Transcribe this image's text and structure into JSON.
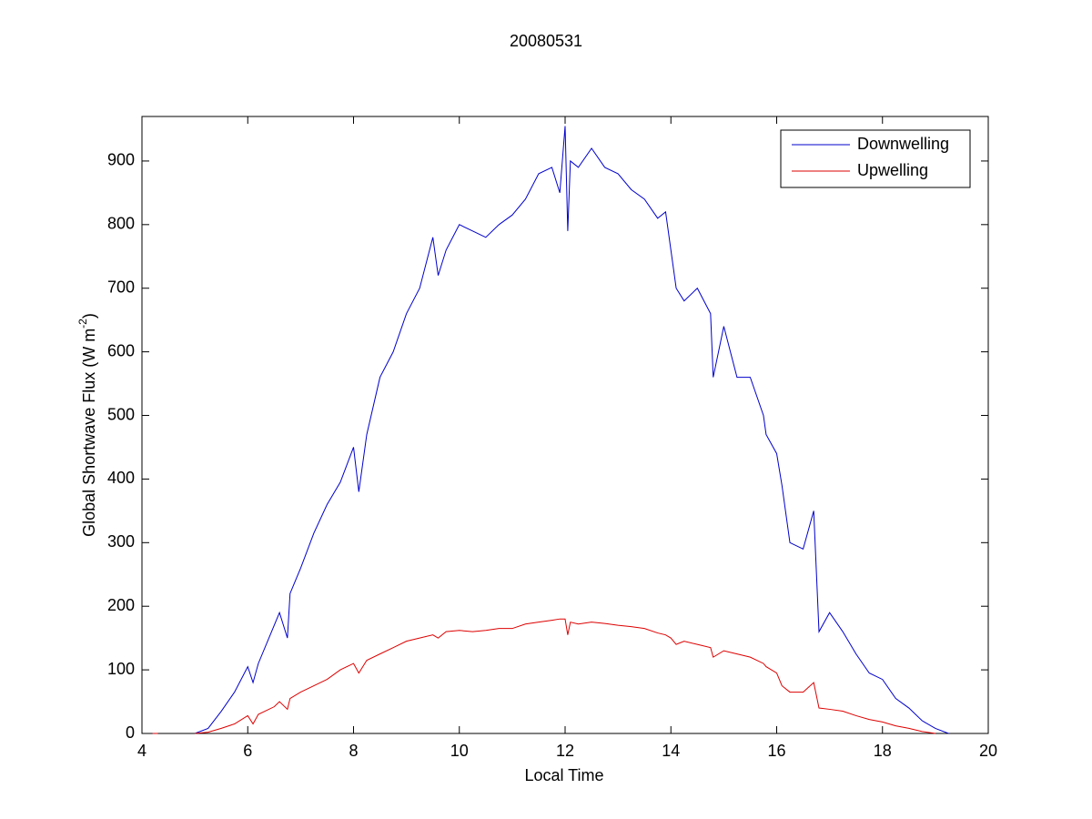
{
  "chart_data": {
    "type": "line",
    "title": "20080531",
    "xlabel": "Local Time",
    "ylabel": [
      "Global Shortwave Flux (W m",
      "-2",
      ")"
    ],
    "x": [
      4.2,
      4.3,
      4.5,
      5.0,
      5.25,
      5.5,
      5.75,
      6.0,
      6.1,
      6.2,
      6.5,
      6.6,
      6.75,
      6.8,
      7.0,
      7.25,
      7.5,
      7.75,
      8.0,
      8.1,
      8.25,
      8.5,
      8.75,
      9.0,
      9.25,
      9.5,
      9.6,
      9.75,
      10.0,
      10.25,
      10.5,
      10.75,
      11.0,
      11.25,
      11.5,
      11.75,
      11.9,
      12.0,
      12.05,
      12.1,
      12.25,
      12.5,
      12.75,
      13.0,
      13.25,
      13.5,
      13.75,
      13.9,
      14.0,
      14.1,
      14.25,
      14.5,
      14.75,
      14.8,
      15.0,
      15.25,
      15.5,
      15.75,
      15.8,
      16.0,
      16.1,
      16.25,
      16.5,
      16.7,
      16.8,
      17.0,
      17.25,
      17.5,
      17.75,
      18.0,
      18.25,
      18.5,
      18.75,
      19.0,
      19.25
    ],
    "series": [
      {
        "name": "Downwelling",
        "color": "#0000cc",
        "values": [
          0,
          0,
          null,
          0,
          8,
          35,
          65,
          105,
          80,
          110,
          170,
          190,
          150,
          220,
          260,
          315,
          360,
          395,
          450,
          380,
          470,
          560,
          600,
          660,
          700,
          780,
          720,
          760,
          800,
          790,
          780,
          800,
          815,
          840,
          880,
          890,
          850,
          955,
          790,
          900,
          890,
          920,
          890,
          880,
          855,
          840,
          810,
          820,
          760,
          700,
          680,
          700,
          660,
          560,
          640,
          560,
          560,
          500,
          470,
          440,
          390,
          300,
          290,
          350,
          160,
          190,
          160,
          125,
          95,
          85,
          55,
          40,
          20,
          8,
          0
        ]
      },
      {
        "name": "Upwelling",
        "color": "#dd0000",
        "values": [
          0,
          0,
          null,
          0,
          2,
          8,
          15,
          28,
          15,
          30,
          42,
          50,
          38,
          55,
          65,
          75,
          85,
          100,
          110,
          95,
          115,
          125,
          135,
          145,
          150,
          155,
          150,
          160,
          162,
          160,
          162,
          165,
          165,
          172,
          175,
          178,
          180,
          180,
          155,
          175,
          172,
          175,
          173,
          170,
          168,
          165,
          158,
          155,
          150,
          140,
          145,
          140,
          135,
          120,
          130,
          125,
          120,
          110,
          105,
          95,
          75,
          65,
          65,
          80,
          40,
          38,
          35,
          28,
          22,
          18,
          12,
          8,
          3,
          0,
          null
        ]
      }
    ],
    "xlim": [
      4,
      20
    ],
    "xticks": [
      4,
      6,
      8,
      10,
      12,
      14,
      16,
      18,
      20
    ],
    "ylim": [
      0,
      970
    ],
    "yticks": [
      0,
      100,
      200,
      300,
      400,
      500,
      600,
      700,
      800,
      900
    ],
    "legend": "northeast"
  }
}
